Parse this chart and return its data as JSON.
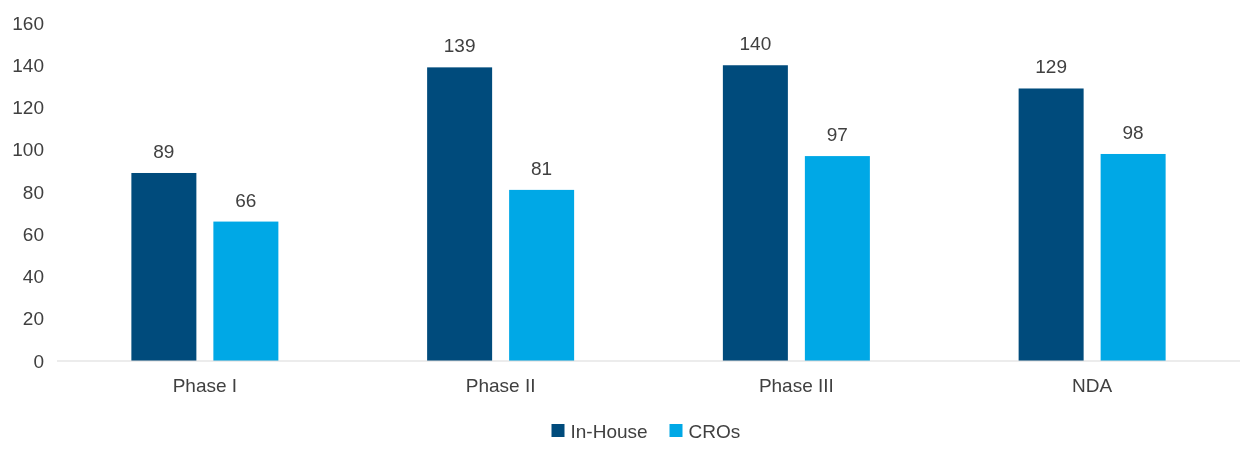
{
  "chart_data": {
    "type": "bar",
    "categories": [
      "Phase I",
      "Phase II",
      "Phase III",
      "NDA"
    ],
    "series": [
      {
        "name": "In-House",
        "color": "#004b7c",
        "values": [
          89,
          139,
          140,
          129
        ]
      },
      {
        "name": "CROs",
        "color": "#00a8e6",
        "values": [
          66,
          81,
          97,
          98
        ]
      }
    ],
    "ylim": [
      0,
      160
    ],
    "yticks": [
      0,
      20,
      40,
      60,
      80,
      100,
      120,
      140,
      160
    ],
    "data_labels": true,
    "legend": "bottom"
  }
}
